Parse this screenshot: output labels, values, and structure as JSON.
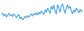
{
  "chart_data": {
    "type": "line",
    "color": "#3d9fe0",
    "tick_labels": false,
    "grid": false,
    "categories": [
      null,
      null,
      null,
      null,
      null,
      null,
      null,
      null,
      null,
      null,
      null,
      null,
      null,
      null,
      null,
      null,
      null,
      null,
      null,
      null,
      null,
      null,
      null,
      null,
      null,
      null,
      null,
      null,
      null,
      null,
      null,
      null,
      null,
      null,
      null,
      null,
      null,
      null,
      null,
      null,
      null,
      null,
      null,
      null,
      null,
      null,
      null,
      null,
      null,
      null,
      null,
      null,
      null,
      null,
      null,
      null,
      null,
      null,
      null,
      null,
      null,
      null,
      null,
      null,
      null,
      null
    ],
    "values": [
      24,
      26,
      22,
      25,
      20,
      23,
      26,
      22,
      24,
      21,
      25,
      23,
      19,
      22,
      24,
      17,
      20,
      15,
      18,
      21,
      19,
      22,
      20,
      23,
      25,
      22,
      26,
      24,
      27,
      23,
      28,
      25,
      30,
      27,
      24,
      32,
      28,
      35,
      30,
      26,
      38,
      33,
      40,
      30,
      25,
      41,
      35,
      28,
      39,
      42,
      33,
      26,
      36,
      40,
      34,
      38,
      30,
      25,
      32,
      28,
      35,
      30,
      27,
      33,
      29,
      31
    ],
    "ylim": [
      0,
      45
    ]
  }
}
